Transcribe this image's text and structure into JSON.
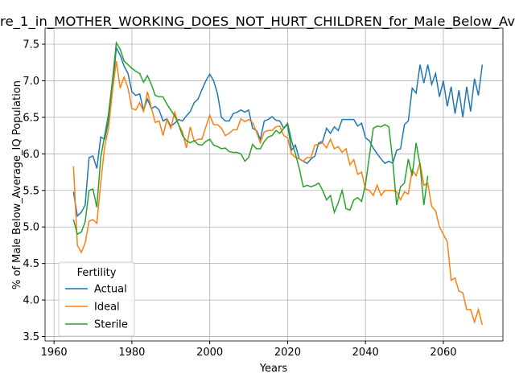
{
  "chart_data": {
    "type": "line",
    "title": "re_1_in_MOTHER_WORKING_DOES_NOT_HURT_CHILDREN_for_Male_Below_Av",
    "xlabel": "Years",
    "ylabel": "% of Male Below_Average_IQ Population",
    "legend_title": "Fertility",
    "legend": "lower left",
    "grid": true,
    "xlim": [
      1957.7,
      2075.3
    ],
    "xticks": [
      1960,
      1980,
      2000,
      2020,
      2040,
      2060
    ],
    "ylim": [
      3.44,
      7.72
    ],
    "yticks": [
      3.5,
      {
        "value": 4,
        "label": "4.0"
      },
      4.5,
      {
        "value": 5,
        "label": "5.0"
      },
      5.5,
      {
        "value": 6,
        "label": "6.0"
      },
      6.5,
      {
        "value": 7,
        "label": "7.0"
      },
      7.5
    ],
    "x": [
      1965,
      1966,
      1967,
      1968,
      1969,
      1970,
      1971,
      1972,
      1973,
      1974,
      1975,
      1976,
      1977,
      1978,
      1979,
      1980,
      1981,
      1982,
      1983,
      1984,
      1985,
      1986,
      1987,
      1988,
      1989,
      1990,
      1991,
      1992,
      1993,
      1994,
      1995,
      1996,
      1997,
      1998,
      1999,
      2000,
      2001,
      2002,
      2003,
      2004,
      2005,
      2006,
      2007,
      2008,
      2009,
      2010,
      2011,
      2012,
      2013,
      2014,
      2015,
      2016,
      2017,
      2018,
      2019,
      2020,
      2021,
      2022,
      2023,
      2024,
      2025,
      2026,
      2027,
      2028,
      2029,
      2030,
      2031,
      2032,
      2033,
      2034,
      2035,
      2036,
      2037,
      2038,
      2039,
      2040,
      2041,
      2042,
      2043,
      2044,
      2045,
      2046,
      2047,
      2048,
      2049,
      2050,
      2051,
      2052,
      2053,
      2054,
      2055,
      2056,
      2057,
      2058,
      2059,
      2060,
      2061,
      2062,
      2063,
      2064,
      2065,
      2066,
      2067,
      2068,
      2069,
      2070
    ],
    "series": [
      {
        "name": "Actual",
        "color": "#1f77b4",
        "values": [
          5.48,
          5.15,
          5.2,
          5.3,
          5.95,
          5.97,
          5.8,
          6.23,
          6.2,
          6.45,
          6.9,
          7.45,
          7.35,
          7.2,
          7.1,
          6.85,
          6.8,
          6.82,
          6.6,
          6.75,
          6.62,
          6.65,
          6.6,
          6.45,
          6.48,
          6.38,
          6.42,
          6.47,
          6.45,
          6.52,
          6.58,
          6.7,
          6.75,
          6.88,
          7.0,
          7.09,
          7.0,
          6.82,
          6.5,
          6.45,
          6.45,
          6.55,
          6.57,
          6.6,
          6.57,
          6.6,
          6.35,
          6.32,
          6.2,
          6.45,
          6.47,
          6.51,
          6.46,
          6.45,
          6.35,
          6.4,
          6.05,
          6.12,
          5.93,
          5.9,
          5.87,
          5.93,
          5.97,
          6.15,
          6.17,
          6.35,
          6.28,
          6.37,
          6.32,
          6.47,
          6.47,
          6.47,
          6.47,
          6.38,
          6.42,
          6.22,
          6.18,
          6.08,
          6.0,
          5.93,
          5.87,
          5.9,
          5.87,
          6.05,
          6.07,
          6.4,
          6.45,
          6.9,
          6.83,
          7.22,
          6.97,
          7.22,
          6.95,
          7.1,
          6.78,
          7.0,
          6.65,
          6.92,
          6.55,
          6.87,
          6.5,
          6.92,
          6.58,
          7.03,
          6.8,
          7.22
        ]
      },
      {
        "name": "Ideal",
        "color": "#ff7f0e",
        "values": [
          5.83,
          4.75,
          4.65,
          4.78,
          5.08,
          5.1,
          5.05,
          5.6,
          6.1,
          6.35,
          6.85,
          7.27,
          6.9,
          7.05,
          6.9,
          6.62,
          6.6,
          6.7,
          6.58,
          6.85,
          6.63,
          6.43,
          6.45,
          6.25,
          6.47,
          6.35,
          6.57,
          6.4,
          6.3,
          6.08,
          6.37,
          6.17,
          6.2,
          6.2,
          6.37,
          6.53,
          6.4,
          6.4,
          6.35,
          6.25,
          6.28,
          6.33,
          6.33,
          6.48,
          6.44,
          6.47,
          6.43,
          6.3,
          6.15,
          6.3,
          6.32,
          6.32,
          6.37,
          6.38,
          6.25,
          6.22,
          6.0,
          5.95,
          5.93,
          5.9,
          5.95,
          5.95,
          6.12,
          6.13,
          6.15,
          6.08,
          6.2,
          6.07,
          6.1,
          6.02,
          6.07,
          5.85,
          5.92,
          5.72,
          5.75,
          5.52,
          5.5,
          5.43,
          5.57,
          5.43,
          5.5,
          5.5,
          5.5,
          5.48,
          5.37,
          5.48,
          5.45,
          5.78,
          5.7,
          5.88,
          5.57,
          5.6,
          5.28,
          5.22,
          5.0,
          4.9,
          4.8,
          4.27,
          4.3,
          4.12,
          4.1,
          3.87,
          3.87,
          3.7,
          3.87,
          3.66
        ]
      },
      {
        "name": "Sterile",
        "color": "#2ca02c",
        "values": [
          5.1,
          4.9,
          4.93,
          5.07,
          5.5,
          5.52,
          5.27,
          5.95,
          6.25,
          6.55,
          7.0,
          7.52,
          7.43,
          7.27,
          7.22,
          7.17,
          7.13,
          7.1,
          6.98,
          7.07,
          6.95,
          6.8,
          6.78,
          6.78,
          6.68,
          6.6,
          6.52,
          6.4,
          6.25,
          6.18,
          6.15,
          6.18,
          6.13,
          6.12,
          6.17,
          6.2,
          6.12,
          6.1,
          6.07,
          6.08,
          6.03,
          6.02,
          6.02,
          6.0,
          5.9,
          5.95,
          6.13,
          6.07,
          6.07,
          6.17,
          6.23,
          6.25,
          6.32,
          6.28,
          6.35,
          6.42,
          6.18,
          6.0,
          5.8,
          5.55,
          5.57,
          5.55,
          5.57,
          5.6,
          5.5,
          5.37,
          5.43,
          5.2,
          5.33,
          5.5,
          5.25,
          5.23,
          5.37,
          5.4,
          5.35,
          5.58,
          5.97,
          6.35,
          6.38,
          6.37,
          6.4,
          6.37,
          5.9,
          5.3,
          5.55,
          5.6,
          5.93,
          5.7,
          6.15,
          5.85,
          5.3,
          5.7,
          null,
          null,
          null,
          null,
          null,
          null,
          null,
          null,
          null,
          null,
          null,
          null,
          null,
          null
        ]
      }
    ]
  }
}
